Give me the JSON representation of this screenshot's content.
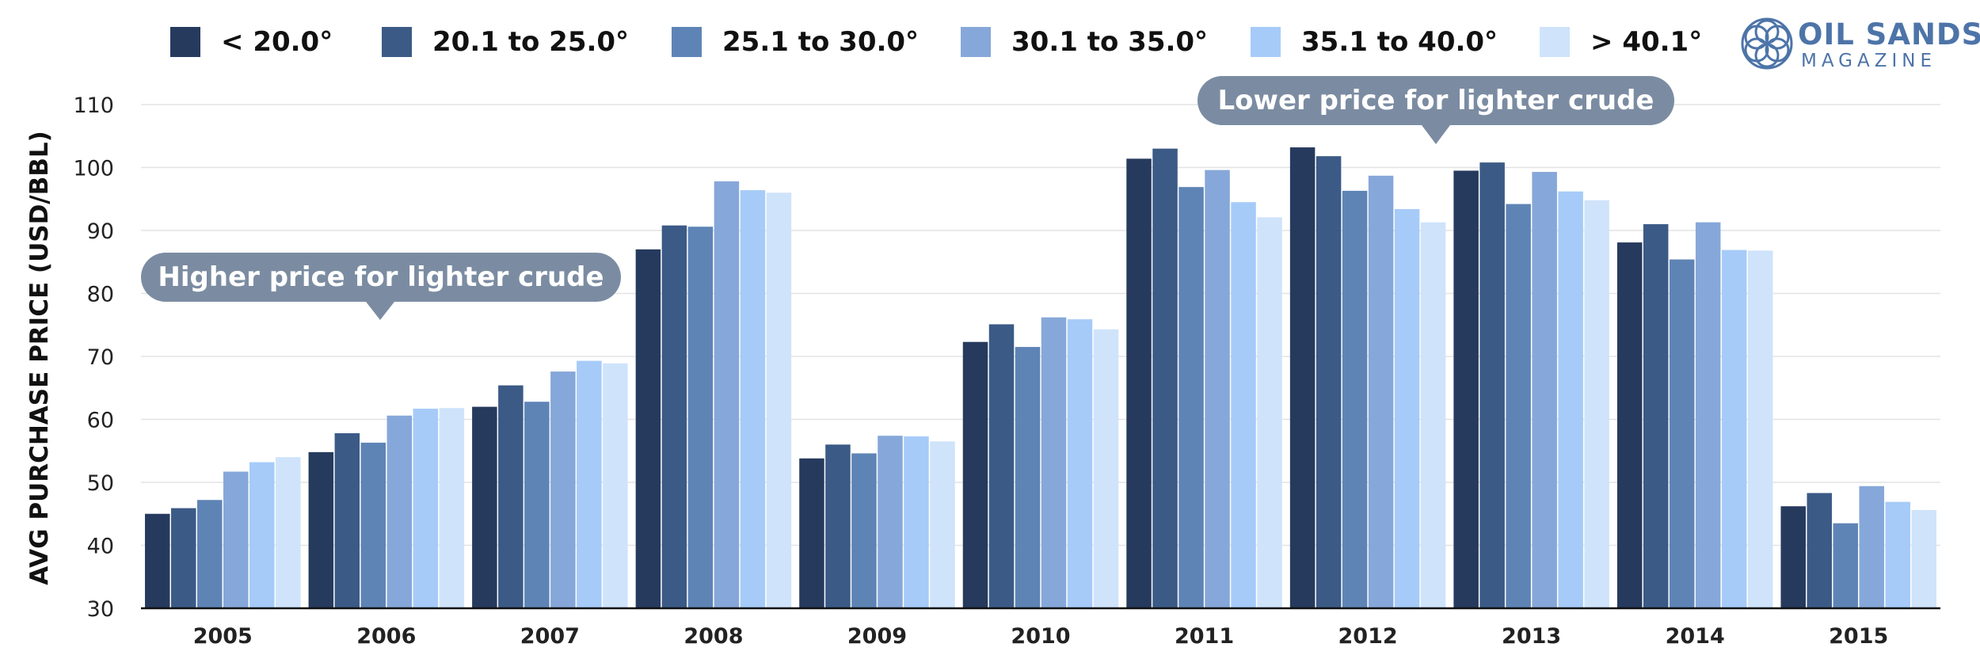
{
  "chart_data": {
    "type": "bar",
    "title": "",
    "xlabel": "",
    "ylabel": "AVG PURCHASE PRICE (USD/BBL)",
    "ylim": [
      30,
      110
    ],
    "yticks": [
      30,
      40,
      50,
      60,
      70,
      80,
      90,
      100,
      110
    ],
    "grid": true,
    "legend_position": "top",
    "categories": [
      "2005",
      "2006",
      "2007",
      "2008",
      "2009",
      "2010",
      "2011",
      "2012",
      "2013",
      "2014",
      "2015"
    ],
    "series": [
      {
        "name": "< 20.0°",
        "color": "#263a5e",
        "values": [
          45.0,
          54.8,
          62.0,
          87.0,
          53.8,
          72.3,
          101.4,
          103.2,
          99.5,
          88.1,
          46.2
        ]
      },
      {
        "name": "20.1 to 25.0°",
        "color": "#3b5a86",
        "values": [
          45.9,
          57.8,
          65.4,
          90.8,
          56.0,
          75.1,
          103.0,
          101.8,
          100.8,
          91.0,
          48.3
        ]
      },
      {
        "name": "25.1 to 30.0°",
        "color": "#5e84b6",
        "values": [
          47.2,
          56.3,
          62.8,
          90.6,
          54.6,
          71.5,
          96.9,
          96.3,
          94.2,
          85.4,
          43.5
        ]
      },
      {
        "name": "30.1 to 35.0°",
        "color": "#86a7d9",
        "values": [
          51.7,
          60.6,
          67.6,
          97.8,
          57.4,
          76.2,
          99.6,
          98.7,
          99.3,
          91.3,
          49.4
        ]
      },
      {
        "name": "35.1 to 40.0°",
        "color": "#a6cbf8",
        "values": [
          53.2,
          61.7,
          69.3,
          96.4,
          57.3,
          75.9,
          94.5,
          93.4,
          96.2,
          86.9,
          46.9
        ]
      },
      {
        "name": "> 40.1°",
        "color": "#cfe3fb",
        "values": [
          54.0,
          61.8,
          68.9,
          96.0,
          56.5,
          74.3,
          92.1,
          91.3,
          94.8,
          86.8,
          45.6
        ]
      }
    ],
    "annotations": [
      {
        "text": "Higher price for lighter crude",
        "year": "2006"
      },
      {
        "text": "Lower price for lighter crude",
        "year": "2012"
      }
    ]
  },
  "logo": {
    "name": "oil-sands-logo",
    "line1": "OIL SANDS",
    "line2": "MAGAZINE",
    "color": "#4d74a8"
  }
}
